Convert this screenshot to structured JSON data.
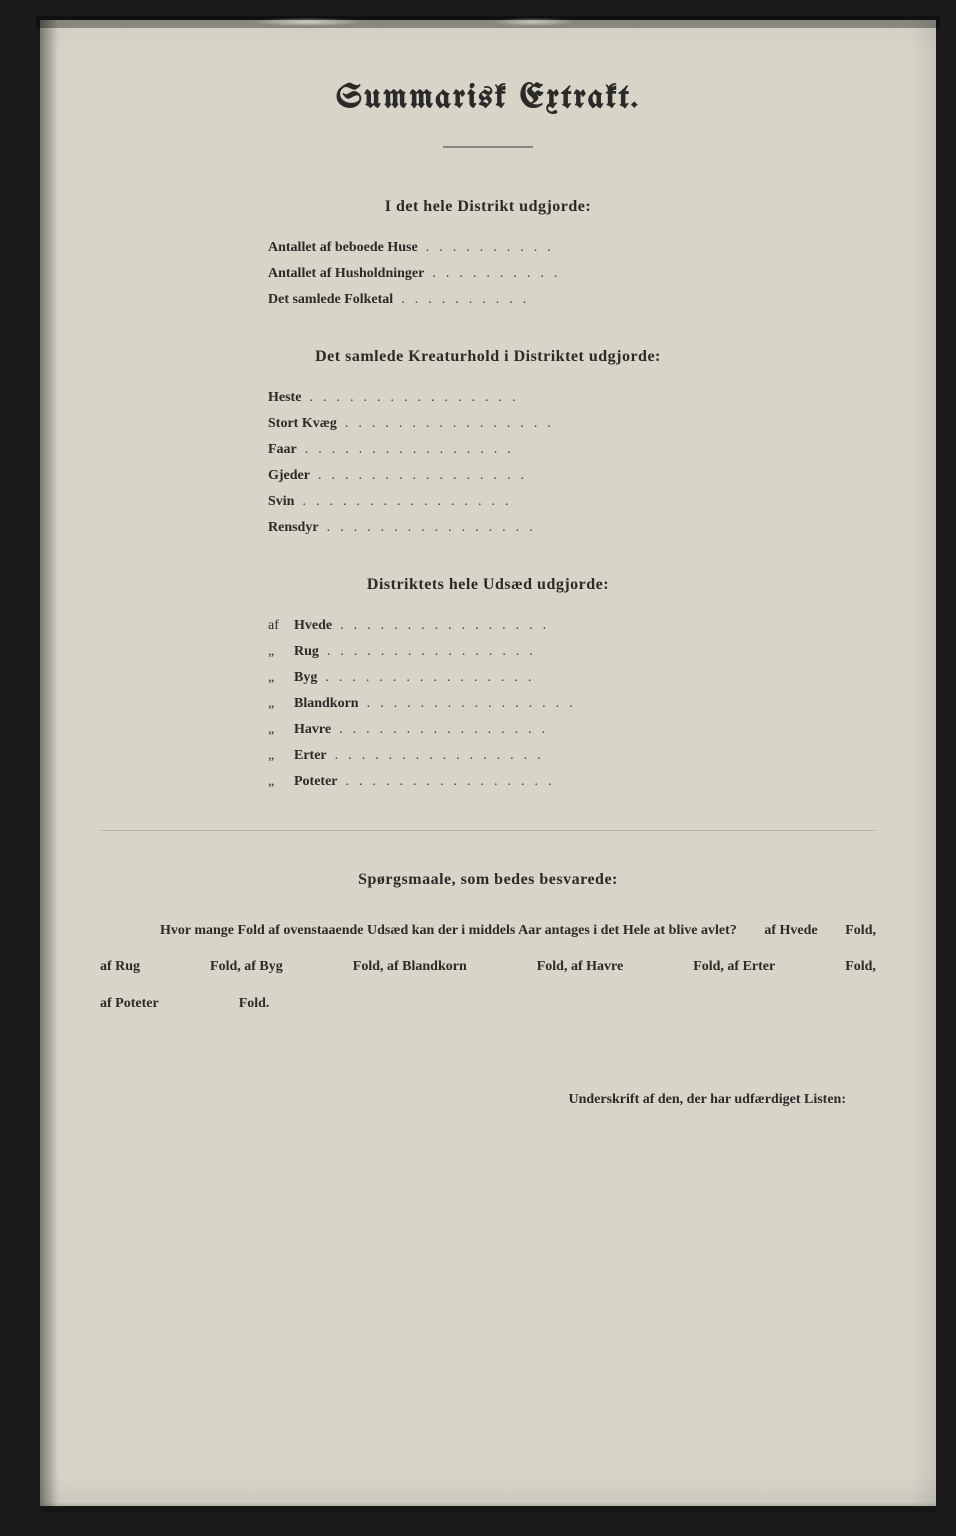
{
  "title": "Summarisk Extrakt.",
  "section1": {
    "heading": "I det hele Distrikt udgjorde:",
    "rows": [
      {
        "label": "Antallet af beboede Huse",
        "value": ""
      },
      {
        "label": "Antallet af Husholdninger",
        "value": ""
      },
      {
        "label": "Det samlede Folketal",
        "value": ""
      }
    ]
  },
  "section2": {
    "heading": "Det samlede Kreaturhold i Distriktet udgjorde:",
    "rows": [
      {
        "label": "Heste",
        "value": ""
      },
      {
        "label": "Stort Kvæg",
        "value": ""
      },
      {
        "label": "Faar",
        "value": ""
      },
      {
        "label": "Gjeder",
        "value": ""
      },
      {
        "label": "Svin",
        "value": ""
      },
      {
        "label": "Rensdyr",
        "value": ""
      }
    ]
  },
  "section3": {
    "heading": "Distriktets hele Udsæd udgjorde:",
    "prefix_first": "af",
    "prefix_rest": "„",
    "rows": [
      {
        "label": "Hvede",
        "value": ""
      },
      {
        "label": "Rug",
        "value": ""
      },
      {
        "label": "Byg",
        "value": ""
      },
      {
        "label": "Blandkorn",
        "value": ""
      },
      {
        "label": "Havre",
        "value": ""
      },
      {
        "label": "Erter",
        "value": ""
      },
      {
        "label": "Poteter",
        "value": ""
      }
    ]
  },
  "questions": {
    "heading": "Spørgsmaale, som bedes besvarede:",
    "line1_lead": "Hvor mange Fold af ovenstaaende Udsæd kan der i middels Aar antages i det Hele at blive avlet?",
    "seg_hvede": "af Hvede",
    "seg_fold": "Fold,",
    "seg_rug": "af Rug",
    "seg_fold_byg": "Fold, af Byg",
    "seg_fold_bland": "Fold, af Blandkorn",
    "seg_fold_havre": "Fold, af Havre",
    "seg_fold_erter": "Fold, af Erter",
    "seg_poteter": "af Poteter",
    "seg_fold_end": "Fold."
  },
  "signature": "Underskrift af den, der har udfærdiget Listen:"
}
